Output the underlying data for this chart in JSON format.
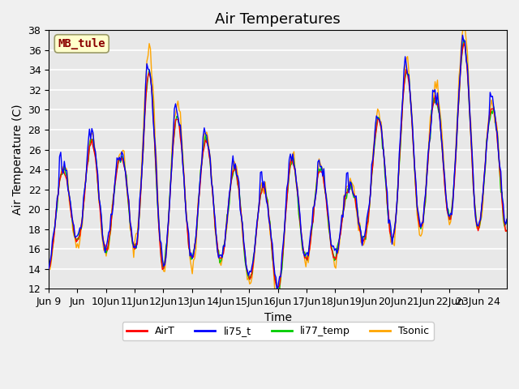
{
  "title": "Air Temperatures",
  "ylabel": "Air Temperature (C)",
  "xlabel": "Time",
  "ylim": [
    12,
    38
  ],
  "yticks": [
    12,
    14,
    16,
    18,
    20,
    22,
    24,
    26,
    28,
    30,
    32,
    34,
    36,
    38
  ],
  "xtick_labels": [
    "Jun 9",
    "Jun",
    "10Jun",
    "11Jun",
    "12Jun",
    "13Jun",
    "14Jun",
    "15Jun",
    "16Jun",
    "17Jun",
    "18Jun",
    "19Jun",
    "20Jun",
    "21Jun",
    "22Jun",
    "23Jun 24"
  ],
  "annotation": "MB_tule",
  "annotation_color": "#8B0000",
  "annotation_bg": "#FFFFCC",
  "series_colors": [
    "#FF0000",
    "#0000FF",
    "#00CC00",
    "#FFA500"
  ],
  "series_labels": [
    "AirT",
    "li75_t",
    "li77_temp",
    "Tsonic"
  ],
  "background_color": "#E8E8E8",
  "grid_color": "#FFFFFF",
  "title_fontsize": 13,
  "axis_fontsize": 10,
  "tick_fontsize": 9,
  "n_days": 16,
  "pts_per_day": 24,
  "day_peaks": [
    24,
    27,
    25,
    34,
    29,
    27,
    24,
    22,
    25,
    24,
    22,
    29,
    34,
    31,
    37,
    30
  ],
  "day_mins": [
    14,
    17,
    16,
    16,
    14,
    15,
    15,
    13,
    12,
    15,
    15,
    17,
    17,
    18,
    19,
    18
  ]
}
